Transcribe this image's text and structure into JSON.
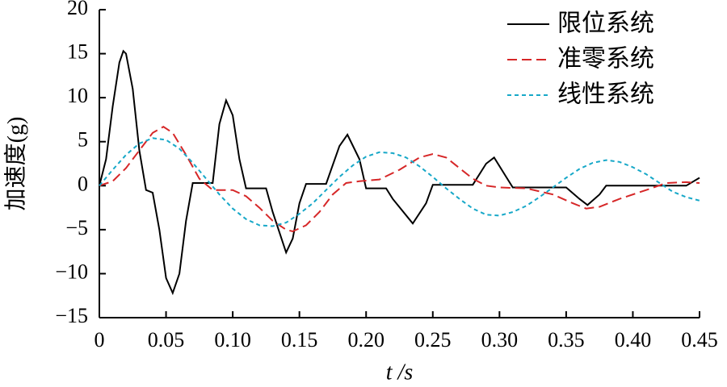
{
  "chart_data": {
    "type": "line",
    "xlabel": "t /s",
    "ylabel": "加速度(g)",
    "xlim": [
      0,
      0.45
    ],
    "ylim": [
      -15,
      20
    ],
    "xticks": [
      0,
      0.05,
      {
        "value": 0.1,
        "label": "0.10"
      },
      0.15,
      {
        "value": 0.2,
        "label": "0.20"
      },
      0.25,
      {
        "value": 0.3,
        "label": "0.30"
      },
      0.35,
      {
        "value": 0.4,
        "label": "0.40"
      },
      0.45
    ],
    "yticks": [
      {
        "value": -15,
        "label": "−15"
      },
      {
        "value": -10,
        "label": "−10"
      },
      {
        "value": -5,
        "label": "−5"
      },
      0,
      5,
      10,
      15,
      20
    ],
    "legend": "upper right",
    "series": [
      {
        "name": "限位系统",
        "color": "#000000",
        "dash": "solid",
        "x": [
          0,
          0.005,
          0.01,
          0.015,
          0.018,
          0.02,
          0.025,
          0.03,
          0.035,
          0.04,
          0.045,
          0.05,
          0.055,
          0.06,
          0.065,
          0.07,
          0.085,
          0.09,
          0.095,
          0.1,
          0.105,
          0.11,
          0.125,
          0.13,
          0.14,
          0.145,
          0.15,
          0.155,
          0.17,
          0.18,
          0.186,
          0.195,
          0.2,
          0.215,
          0.22,
          0.235,
          0.245,
          0.25,
          0.28,
          0.29,
          0.296,
          0.305,
          0.31,
          0.35,
          0.36,
          0.366,
          0.375,
          0.38,
          0.44,
          0.45
        ],
        "values": [
          0,
          3,
          9,
          14,
          15.3,
          15,
          11,
          4,
          -0.5,
          -0.8,
          -5,
          -10.5,
          -12.2,
          -10,
          -4,
          0.3,
          0.3,
          7,
          9.7,
          8,
          3,
          -0.3,
          -0.3,
          -3,
          -7.6,
          -6,
          -2,
          0.2,
          0.2,
          4.5,
          5.8,
          3,
          -0.3,
          -0.3,
          -1.5,
          -4.3,
          -2,
          0.1,
          0.1,
          2.5,
          3.2,
          1,
          -0.2,
          -0.2,
          -1.5,
          -2.2,
          -1,
          0,
          0,
          0.9
        ]
      },
      {
        "name": "准零系统",
        "color": "#d62728",
        "dash": "dashed",
        "x": [
          0,
          0.01,
          0.02,
          0.03,
          0.04,
          0.048,
          0.055,
          0.065,
          0.075,
          0.085,
          0.1,
          0.11,
          0.12,
          0.13,
          0.14,
          0.145,
          0.155,
          0.165,
          0.175,
          0.185,
          0.195,
          0.21,
          0.225,
          0.24,
          0.25,
          0.26,
          0.27,
          0.28,
          0.29,
          0.3,
          0.32,
          0.34,
          0.355,
          0.365,
          0.375,
          0.39,
          0.41,
          0.425,
          0.44,
          0.45
        ],
        "values": [
          0,
          0.5,
          2,
          4,
          6,
          6.7,
          6,
          3.5,
          0.8,
          -0.5,
          -0.5,
          -1.2,
          -2.5,
          -4,
          -5,
          -5.2,
          -4.5,
          -3,
          -1,
          0.3,
          0.5,
          0.7,
          1.8,
          3.2,
          3.6,
          3.2,
          2,
          0.8,
          0,
          -0.2,
          -0.3,
          -1,
          -2,
          -2.6,
          -2.4,
          -1.5,
          -0.5,
          0.3,
          0.4,
          0.3
        ]
      },
      {
        "name": "线性系统",
        "color": "#17a8c8",
        "dash": "dotted",
        "x": [
          0,
          0.01,
          0.02,
          0.03,
          0.04,
          0.05,
          0.06,
          0.07,
          0.08,
          0.09,
          0.1,
          0.11,
          0.12,
          0.13,
          0.14,
          0.15,
          0.16,
          0.17,
          0.18,
          0.19,
          0.2,
          0.21,
          0.22,
          0.23,
          0.24,
          0.25,
          0.26,
          0.27,
          0.28,
          0.29,
          0.3,
          0.31,
          0.32,
          0.33,
          0.34,
          0.35,
          0.36,
          0.37,
          0.38,
          0.39,
          0.4,
          0.41,
          0.42,
          0.43,
          0.44,
          0.45
        ],
        "values": [
          0,
          1.8,
          3.5,
          4.8,
          5.4,
          5.2,
          4.2,
          2.6,
          0.8,
          -1,
          -2.6,
          -3.8,
          -4.5,
          -4.6,
          -4.2,
          -3.2,
          -2,
          -0.5,
          1,
          2.3,
          3.3,
          3.8,
          3.7,
          3.2,
          2.2,
          1,
          -0.3,
          -1.5,
          -2.6,
          -3.3,
          -3.4,
          -3,
          -2.3,
          -1.3,
          -0.2,
          0.9,
          1.9,
          2.6,
          2.9,
          2.7,
          2.1,
          1.3,
          0.3,
          -0.7,
          -1.3,
          -1.7
        ]
      }
    ]
  }
}
